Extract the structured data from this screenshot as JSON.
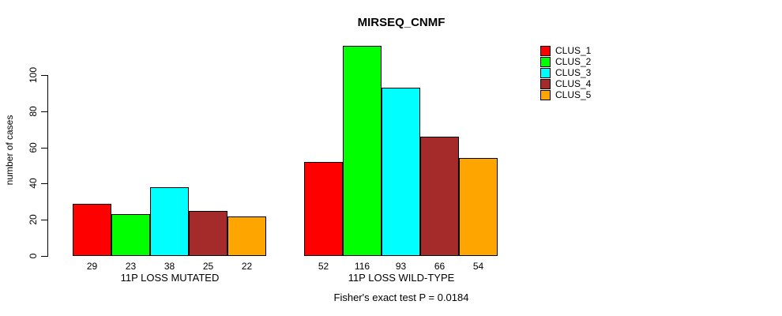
{
  "chart_data": {
    "type": "bar",
    "title": "MIRSEQ_CNMF",
    "ylabel": "number of cases",
    "xlabel": "",
    "annotation": "Fisher's exact test P = 0.0184",
    "categories": [
      "11P LOSS MUTATED",
      "11P LOSS WILD-TYPE"
    ],
    "series": [
      {
        "name": "CLUS_1",
        "color": "#FF0000",
        "values": [
          29,
          52
        ]
      },
      {
        "name": "CLUS_2",
        "color": "#00FF00",
        "values": [
          23,
          116
        ]
      },
      {
        "name": "CLUS_3",
        "color": "#00FFFF",
        "values": [
          38,
          93
        ]
      },
      {
        "name": "CLUS_4",
        "color": "#A52A2A",
        "values": [
          25,
          66
        ]
      },
      {
        "name": "CLUS_5",
        "color": "#FFA500",
        "values": [
          22,
          54
        ]
      }
    ],
    "yticks": [
      0,
      20,
      40,
      60,
      80,
      100
    ],
    "ylim": [
      0,
      120
    ],
    "grid": false,
    "legend_position": "right",
    "bar_labels_shown": true
  }
}
